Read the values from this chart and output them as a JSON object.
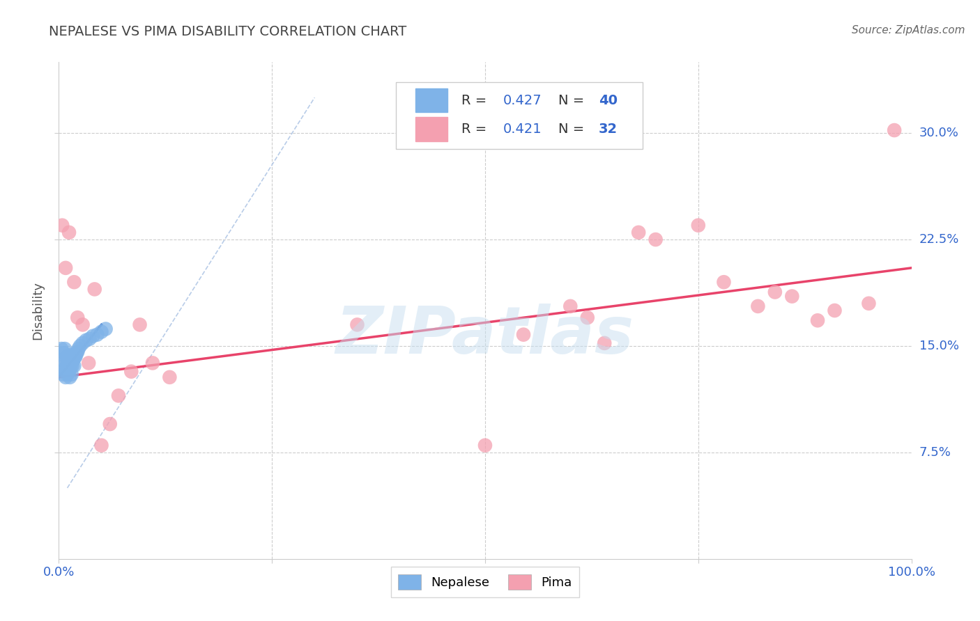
{
  "title": "NEPALESE VS PIMA DISABILITY CORRELATION CHART",
  "source": "Source: ZipAtlas.com",
  "ylabel": "Disability",
  "xlim": [
    0,
    1.0
  ],
  "ylim": [
    0,
    0.35
  ],
  "xticks": [
    0.0,
    0.25,
    0.5,
    0.75,
    1.0
  ],
  "xticklabels": [
    "0.0%",
    "",
    "",
    "",
    "100.0%"
  ],
  "yticks": [
    0.075,
    0.15,
    0.225,
    0.3
  ],
  "yticklabels": [
    "7.5%",
    "15.0%",
    "22.5%",
    "30.0%"
  ],
  "nepalese_R": "0.427",
  "nepalese_N": "40",
  "pima_R": "0.421",
  "pima_N": "32",
  "nepalese_color": "#7fb3e8",
  "pima_color": "#f4a0b0",
  "nepalese_line_color": "#2255bb",
  "pima_line_color": "#e8436a",
  "ref_line_color": "#b8cce8",
  "background_color": "#ffffff",
  "watermark": "ZIPatlas",
  "nepalese_x": [
    0.002,
    0.003,
    0.004,
    0.005,
    0.006,
    0.007,
    0.007,
    0.008,
    0.008,
    0.009,
    0.009,
    0.01,
    0.01,
    0.011,
    0.011,
    0.012,
    0.012,
    0.013,
    0.013,
    0.014,
    0.014,
    0.015,
    0.015,
    0.016,
    0.016,
    0.017,
    0.018,
    0.019,
    0.02,
    0.021,
    0.022,
    0.023,
    0.025,
    0.028,
    0.032,
    0.036,
    0.04,
    0.045,
    0.05,
    0.055
  ],
  "nepalese_y": [
    0.14,
    0.148,
    0.133,
    0.13,
    0.145,
    0.148,
    0.133,
    0.14,
    0.128,
    0.142,
    0.135,
    0.138,
    0.13,
    0.143,
    0.136,
    0.14,
    0.132,
    0.137,
    0.128,
    0.142,
    0.135,
    0.138,
    0.13,
    0.144,
    0.136,
    0.14,
    0.136,
    0.142,
    0.143,
    0.145,
    0.146,
    0.148,
    0.15,
    0.152,
    0.154,
    0.155,
    0.157,
    0.158,
    0.16,
    0.162
  ],
  "pima_x": [
    0.004,
    0.008,
    0.012,
    0.018,
    0.022,
    0.028,
    0.035,
    0.042,
    0.05,
    0.06,
    0.07,
    0.085,
    0.095,
    0.11,
    0.13,
    0.35,
    0.5,
    0.545,
    0.6,
    0.62,
    0.64,
    0.68,
    0.7,
    0.75,
    0.78,
    0.82,
    0.84,
    0.86,
    0.89,
    0.91,
    0.95,
    0.98
  ],
  "pima_y": [
    0.235,
    0.205,
    0.23,
    0.195,
    0.17,
    0.165,
    0.138,
    0.19,
    0.08,
    0.095,
    0.115,
    0.132,
    0.165,
    0.138,
    0.128,
    0.165,
    0.08,
    0.158,
    0.178,
    0.17,
    0.152,
    0.23,
    0.225,
    0.235,
    0.195,
    0.178,
    0.188,
    0.185,
    0.168,
    0.175,
    0.18,
    0.302
  ],
  "pima_line_start_x": 0.0,
  "pima_line_start_y": 0.128,
  "pima_line_end_x": 1.0,
  "pima_line_end_y": 0.205,
  "nepalese_line_start_x": 0.0,
  "nepalese_line_start_y": 0.128,
  "nepalese_line_end_x": 0.05,
  "nepalese_line_end_y": 0.165
}
